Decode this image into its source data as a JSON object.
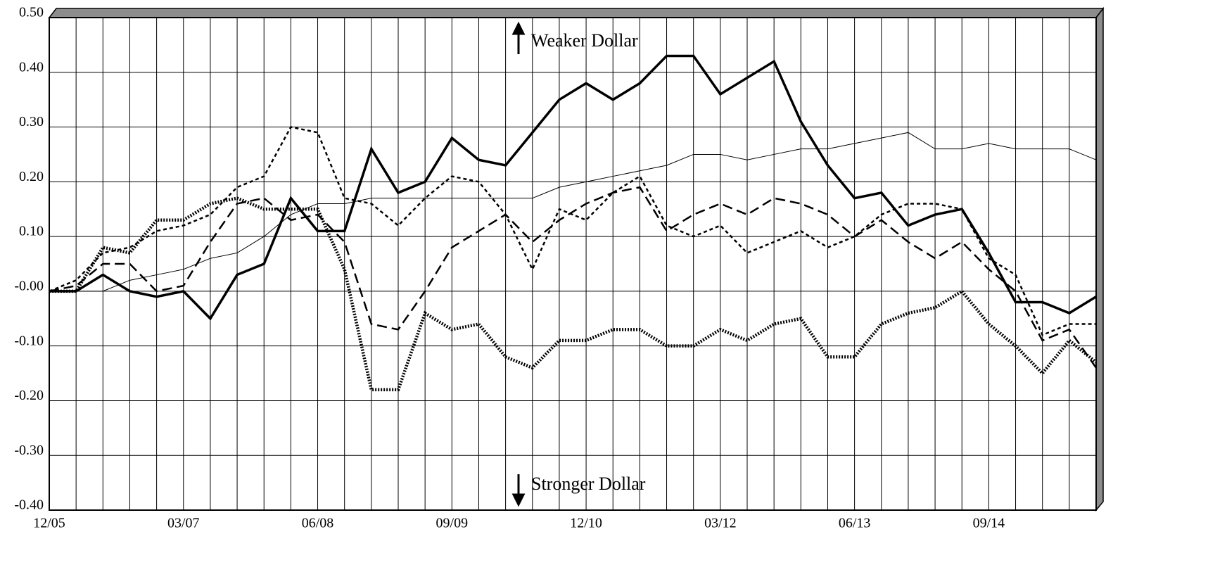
{
  "chart_data": {
    "type": "line",
    "categories": [
      "12/05",
      null,
      null,
      null,
      null,
      "03/07",
      null,
      null,
      null,
      null,
      "06/08",
      null,
      null,
      null,
      null,
      "09/09",
      null,
      null,
      null,
      null,
      "12/10",
      null,
      null,
      null,
      null,
      "03/12",
      null,
      null,
      null,
      null,
      "06/13",
      null,
      null,
      null,
      null,
      "09/14",
      null,
      null,
      null,
      null
    ],
    "annotations": [
      "Weaker Dollar",
      "Stronger Dollar"
    ],
    "ylim": [
      -0.4,
      0.5
    ],
    "yticks": [
      {
        "value": -0.4,
        "label": "-0.40"
      },
      {
        "value": -0.3,
        "label": "-0.30"
      },
      {
        "value": -0.2,
        "label": "-0.20"
      },
      {
        "value": -0.1,
        "label": "-0.10"
      },
      {
        "value": 0,
        "label": "-0.00"
      },
      {
        "value": 0.1,
        "label": "0.10"
      },
      {
        "value": 0.2,
        "label": "0.20"
      },
      {
        "value": 0.3,
        "label": "0.30"
      },
      {
        "value": 0.4,
        "label": "0.40"
      },
      {
        "value": 0.5,
        "label": "0.50"
      }
    ],
    "grid": true,
    "series": [
      {
        "color": "#000000",
        "width": 1,
        "dash": "none",
        "values": [
          0,
          0,
          0,
          0.02,
          0.03,
          0.04,
          0.06,
          0.07,
          0.1,
          0.14,
          0.16,
          0.16,
          0.17,
          0.17,
          0.17,
          0.17,
          0.17,
          0.17,
          0.17,
          0.19,
          0.2,
          0.21,
          0.22,
          0.23,
          0.25,
          0.25,
          0.24,
          0.25,
          0.26,
          0.26,
          0.27,
          0.28,
          0.29,
          0.26,
          0.26,
          0.27,
          0.26,
          0.26,
          0.26,
          0.24
        ]
      },
      {
        "color": "#000000",
        "width": 2.5,
        "dash": "5,4",
        "values": [
          0,
          0.02,
          0.07,
          0.08,
          0.11,
          0.12,
          0.14,
          0.19,
          0.21,
          0.3,
          0.29,
          0.17,
          0.16,
          0.12,
          0.17,
          0.21,
          0.2,
          0.14,
          0.04,
          0.15,
          0.13,
          0.18,
          0.21,
          0.12,
          0.1,
          0.12,
          0.07,
          0.09,
          0.11,
          0.08,
          0.1,
          0.14,
          0.16,
          0.16,
          0.15,
          0.06,
          0.03,
          -0.08,
          -0.06,
          -0.06
        ]
      },
      {
        "color": "#000000",
        "width": 2.5,
        "dash": "14,7",
        "values": [
          0,
          0.01,
          0.05,
          0.05,
          0,
          0.01,
          0.09,
          0.16,
          0.17,
          0.13,
          0.14,
          0.09,
          -0.06,
          -0.07,
          0,
          0.08,
          0.11,
          0.14,
          0.09,
          0.13,
          0.16,
          0.18,
          0.19,
          0.11,
          0.14,
          0.16,
          0.14,
          0.17,
          0.16,
          0.14,
          0.1,
          0.13,
          0.09,
          0.06,
          0.09,
          0.04,
          0,
          -0.09,
          -0.07,
          -0.14
        ]
      },
      {
        "color": "#000000",
        "width": 4.5,
        "dash": "2,2",
        "values": [
          0,
          0,
          0.08,
          0.07,
          0.13,
          0.13,
          0.16,
          0.17,
          0.15,
          0.15,
          0.15,
          0.04,
          -0.18,
          -0.18,
          -0.04,
          -0.07,
          -0.06,
          -0.12,
          -0.14,
          -0.09,
          -0.09,
          -0.07,
          -0.07,
          -0.1,
          -0.1,
          -0.07,
          -0.09,
          -0.06,
          -0.05,
          -0.12,
          -0.12,
          -0.06,
          -0.04,
          -0.03,
          0,
          -0.06,
          -0.1,
          -0.15,
          -0.09,
          -0.13
        ]
      },
      {
        "color": "#000000",
        "width": 3.5,
        "dash": "none",
        "values": [
          0,
          0,
          0.03,
          0,
          -0.01,
          0,
          -0.05,
          0.03,
          0.05,
          0.17,
          0.11,
          0.11,
          0.26,
          0.18,
          0.2,
          0.28,
          0.24,
          0.23,
          0.29,
          0.35,
          0.38,
          0.35,
          0.38,
          0.43,
          0.43,
          0.36,
          0.39,
          0.42,
          0.31,
          0.23,
          0.17,
          0.18,
          0.12,
          0.14,
          0.15,
          0.07,
          -0.02,
          -0.02,
          -0.04,
          -0.01
        ]
      }
    ]
  }
}
